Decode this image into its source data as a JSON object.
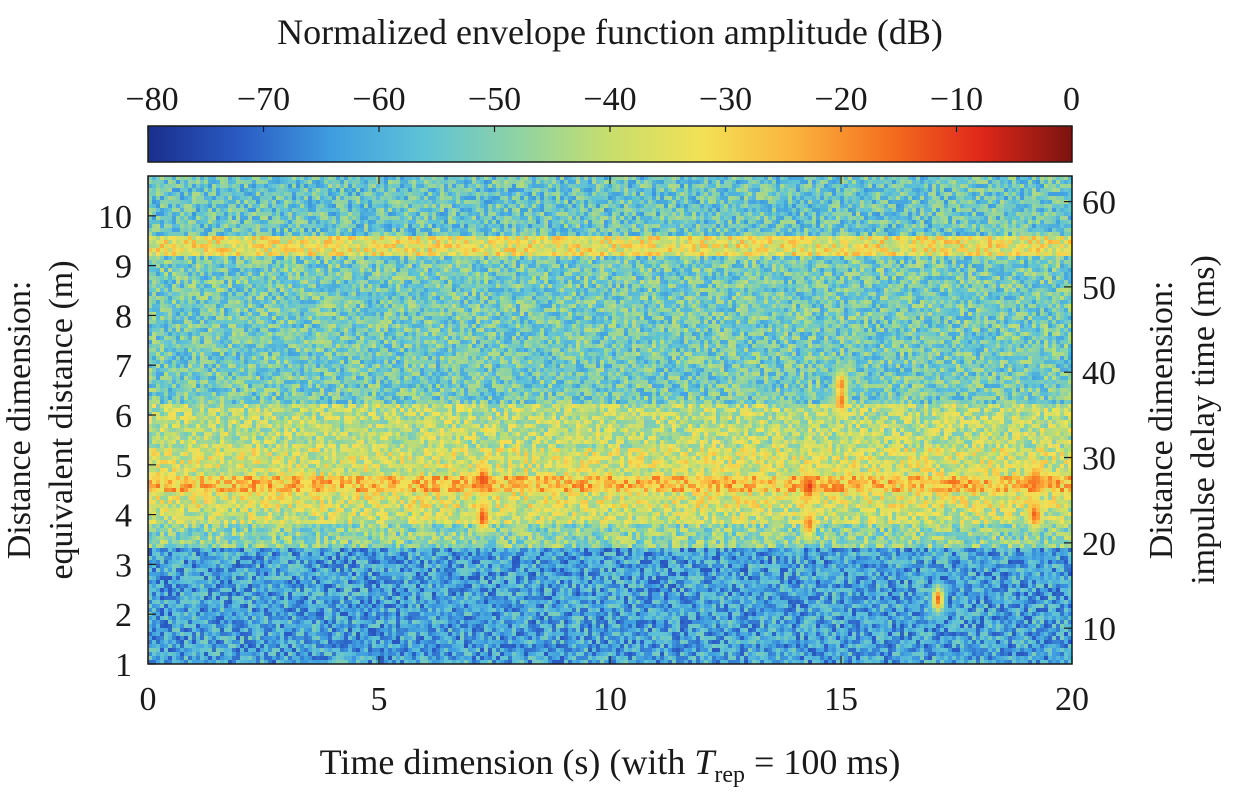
{
  "chart_data": {
    "type": "heatmap",
    "colorbar": {
      "label": "Normalized envelope function amplitude (dB)",
      "range": [
        -80,
        0
      ],
      "ticks": [
        -80,
        -70,
        -60,
        -50,
        -40,
        -30,
        -20,
        -10,
        0
      ],
      "tick_labels": [
        "−80",
        "−70",
        "−60",
        "−50",
        "−40",
        "−30",
        "−20",
        "−10",
        "0"
      ],
      "colormap": [
        "#1a2f8c",
        "#2a5bc4",
        "#3f9ee0",
        "#5fc3d6",
        "#8fd3a3",
        "#c8de6c",
        "#f3e155",
        "#fbb33e",
        "#f5701f",
        "#e0281a",
        "#7a1410"
      ]
    },
    "x_axis": {
      "label_prefix": "Time dimension (s) (with ",
      "label_var": "T",
      "label_sub": "rep",
      "label_suffix": " = 100 ms)",
      "range": [
        0,
        20
      ],
      "ticks": [
        0,
        5,
        10,
        15,
        20
      ],
      "tick_labels": [
        "0",
        "5",
        "10",
        "15",
        "20"
      ]
    },
    "y_axis_left": {
      "label_line1": "Distance dimension:",
      "label_line2": "equivalent distance (m)",
      "range": [
        1,
        10.8
      ],
      "ticks": [
        1,
        2,
        3,
        4,
        5,
        6,
        7,
        8,
        9,
        10
      ],
      "tick_labels": [
        "1",
        "2",
        "3",
        "4",
        "5",
        "6",
        "7",
        "8",
        "9",
        "10"
      ]
    },
    "y_axis_right": {
      "label_line1": "Distance dimension:",
      "label_line2": "impulse delay time (ms)",
      "range": [
        5.8,
        63
      ],
      "ticks": [
        10,
        20,
        30,
        40,
        50,
        60
      ],
      "tick_labels": [
        "10",
        "20",
        "30",
        "40",
        "50",
        "60"
      ]
    },
    "background_bands": [
      {
        "y_from": 1.0,
        "y_to": 3.3,
        "level_db": -62
      },
      {
        "y_from": 3.3,
        "y_to": 3.8,
        "level_db": -48
      },
      {
        "y_from": 3.8,
        "y_to": 4.1,
        "level_db": -40
      },
      {
        "y_from": 4.1,
        "y_to": 4.45,
        "level_db": -37
      },
      {
        "y_from": 4.45,
        "y_to": 4.8,
        "level_db": -27
      },
      {
        "y_from": 4.8,
        "y_to": 5.3,
        "level_db": -38
      },
      {
        "y_from": 5.3,
        "y_to": 6.2,
        "level_db": -42
      },
      {
        "y_from": 6.2,
        "y_to": 9.2,
        "level_db": -52
      },
      {
        "y_from": 9.2,
        "y_to": 9.6,
        "level_db": -34
      },
      {
        "y_from": 9.6,
        "y_to": 10.8,
        "level_db": -54
      }
    ],
    "hot_spots": [
      {
        "t": 7.25,
        "d": 4.7,
        "level_db": -12
      },
      {
        "t": 7.25,
        "d": 3.95,
        "level_db": -14
      },
      {
        "t": 14.3,
        "d": 4.55,
        "level_db": -11
      },
      {
        "t": 14.3,
        "d": 3.8,
        "level_db": -16
      },
      {
        "t": 15.0,
        "d": 6.6,
        "level_db": -18
      },
      {
        "t": 15.0,
        "d": 6.3,
        "level_db": -16
      },
      {
        "t": 17.1,
        "d": 2.3,
        "level_db": -15
      },
      {
        "t": 19.2,
        "d": 4.7,
        "level_db": -16
      },
      {
        "t": 19.2,
        "d": 4.0,
        "level_db": -15
      }
    ]
  }
}
